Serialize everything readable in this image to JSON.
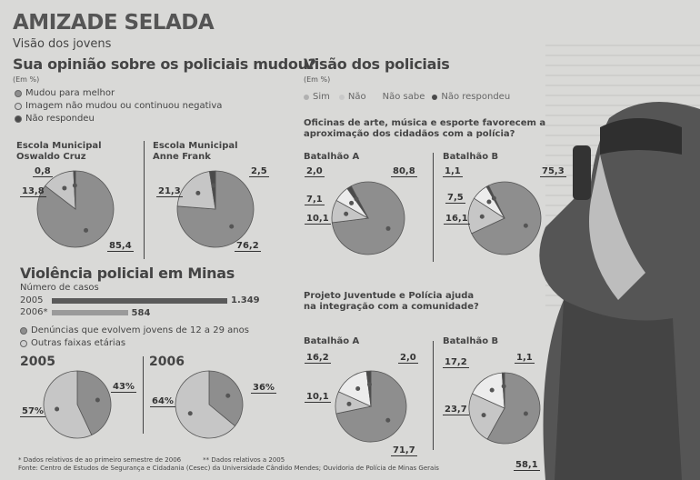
{
  "header": {
    "title": "AMIZADE SELADA",
    "subtitle": "Visão dos jovens"
  },
  "colors": {
    "main": "#8e8e8e",
    "light": "#c6c6c6",
    "white": "#ececec",
    "dark": "#4a4a4a",
    "bar2005": "#5a5a5a",
    "bar2006": "#9a9a9a"
  },
  "jovens": {
    "title": "Sua opinião sobre os policiais mudou?",
    "unit": "(Em %)",
    "legend": [
      "Mudou para melhor",
      "Imagem não mudou ou continuou negativa",
      "Não respondeu"
    ]
  },
  "policiais": {
    "title": "Visão dos policiais",
    "unit": "(Em %)",
    "legend": [
      "Sim",
      "Não",
      "Não sabe",
      "Não respondeu"
    ],
    "q1": "Oficinas de arte, música e esporte favorecem a aproximação dos cidadãos com a polícia?",
    "q2": "Projeto Juventude e Polícia ajuda na integração com a comunidade?"
  },
  "violencia": {
    "title": "Violência policial em Minas",
    "subtitle": "Número de casos",
    "legend": [
      "Denúncias que evolvem jovens de 12 a 29 anos",
      "Outras faixas etárias"
    ]
  },
  "footnotes": {
    "note1": "* Dados relativos de ao primeiro semestre de 2006",
    "note2": "** Dados relativos a 2005",
    "source": "Fonte: Centro de Estudos de Segurança e Cidadania (Cesec) da Universidade Cândido Mendes; Ouvidoria de Polícia de Minas Gerais"
  },
  "chart_data": [
    {
      "type": "pie",
      "title": "Escola Municipal Oswaldo Cruz",
      "start": 0,
      "slices": [
        {
          "name": "Mudou para melhor",
          "value": 85.4,
          "label": "85,4",
          "color": "main"
        },
        {
          "name": "Imagem não mudou ou continuou negativa",
          "value": 13.8,
          "label": "13,8",
          "color": "light"
        },
        {
          "name": "Não respondeu",
          "value": 0.8,
          "label": "0,8",
          "color": "dark"
        }
      ]
    },
    {
      "type": "pie",
      "title": "Escola Municipal Anne Frank",
      "start": 0,
      "slices": [
        {
          "name": "Mudou para melhor",
          "value": 76.2,
          "label": "76,2",
          "color": "main"
        },
        {
          "name": "Imagem não mudou ou continuou negativa",
          "value": 21.3,
          "label": "21,3",
          "color": "light"
        },
        {
          "name": "Não respondeu",
          "value": 2.5,
          "label": "2,5",
          "color": "dark"
        }
      ]
    },
    {
      "type": "pie",
      "title": "Batalhão A",
      "start": -28,
      "slices": [
        {
          "name": "Sim",
          "value": 80.8,
          "label": "80,8",
          "color": "main"
        },
        {
          "name": "Não",
          "value": 10.1,
          "label": "10,1",
          "color": "light"
        },
        {
          "name": "Não sabe",
          "value": 7.1,
          "label": "7,1",
          "color": "white"
        },
        {
          "name": "Não respondeu",
          "value": 2.0,
          "label": "2,0",
          "color": "dark"
        }
      ]
    },
    {
      "type": "pie",
      "title": "Batalhão B",
      "start": -26,
      "slices": [
        {
          "name": "Sim",
          "value": 75.3,
          "label": "75,3",
          "color": "main"
        },
        {
          "name": "Não",
          "value": 16.1,
          "label": "16,1",
          "color": "light"
        },
        {
          "name": "Não sabe",
          "value": 7.5,
          "label": "7,5",
          "color": "white"
        },
        {
          "name": "Não respondeu",
          "value": 1.1,
          "label": "1,1",
          "color": "dark"
        }
      ]
    },
    {
      "type": "pie",
      "title": "Batalhão A",
      "start": 0,
      "slices": [
        {
          "name": "Sim",
          "value": 71.7,
          "label": "71,7",
          "color": "main"
        },
        {
          "name": "Não",
          "value": 10.1,
          "label": "10,1",
          "color": "light"
        },
        {
          "name": "Não sabe",
          "value": 16.2,
          "label": "16,2",
          "color": "white"
        },
        {
          "name": "Não respondeu",
          "value": 2.0,
          "label": "2,0",
          "color": "dark"
        }
      ]
    },
    {
      "type": "pie",
      "title": "Batalhão B",
      "start": 0,
      "slices": [
        {
          "name": "Sim",
          "value": 58.1,
          "label": "58,1",
          "color": "main"
        },
        {
          "name": "Não",
          "value": 23.7,
          "label": "23,7",
          "color": "light"
        },
        {
          "name": "Não sabe",
          "value": 17.2,
          "label": "17,2",
          "color": "white"
        },
        {
          "name": "Não respondeu",
          "value": 1.1,
          "label": "1,1",
          "color": "dark"
        }
      ]
    },
    {
      "type": "pie",
      "title": "2005",
      "start": 0,
      "slices": [
        {
          "name": "Denúncias que evolvem jovens de 12 a 29 anos",
          "value": 43,
          "label": "43%",
          "color": "main"
        },
        {
          "name": "Outras faixas etárias",
          "value": 57,
          "label": "57%",
          "color": "light"
        }
      ]
    },
    {
      "type": "pie",
      "title": "2006",
      "start": 0,
      "slices": [
        {
          "name": "Denúncias que evolvem jovens de 12 a 29 anos",
          "value": 36,
          "label": "36%",
          "color": "main"
        },
        {
          "name": "Outras faixas etárias",
          "value": 64,
          "label": "64%",
          "color": "light"
        }
      ]
    },
    {
      "type": "bar",
      "title": "Número de casos",
      "categories": [
        "2005",
        "2006*"
      ],
      "values": [
        1349,
        584
      ],
      "labels": [
        "1.349",
        "584"
      ],
      "xlim": [
        0,
        1349
      ]
    }
  ]
}
